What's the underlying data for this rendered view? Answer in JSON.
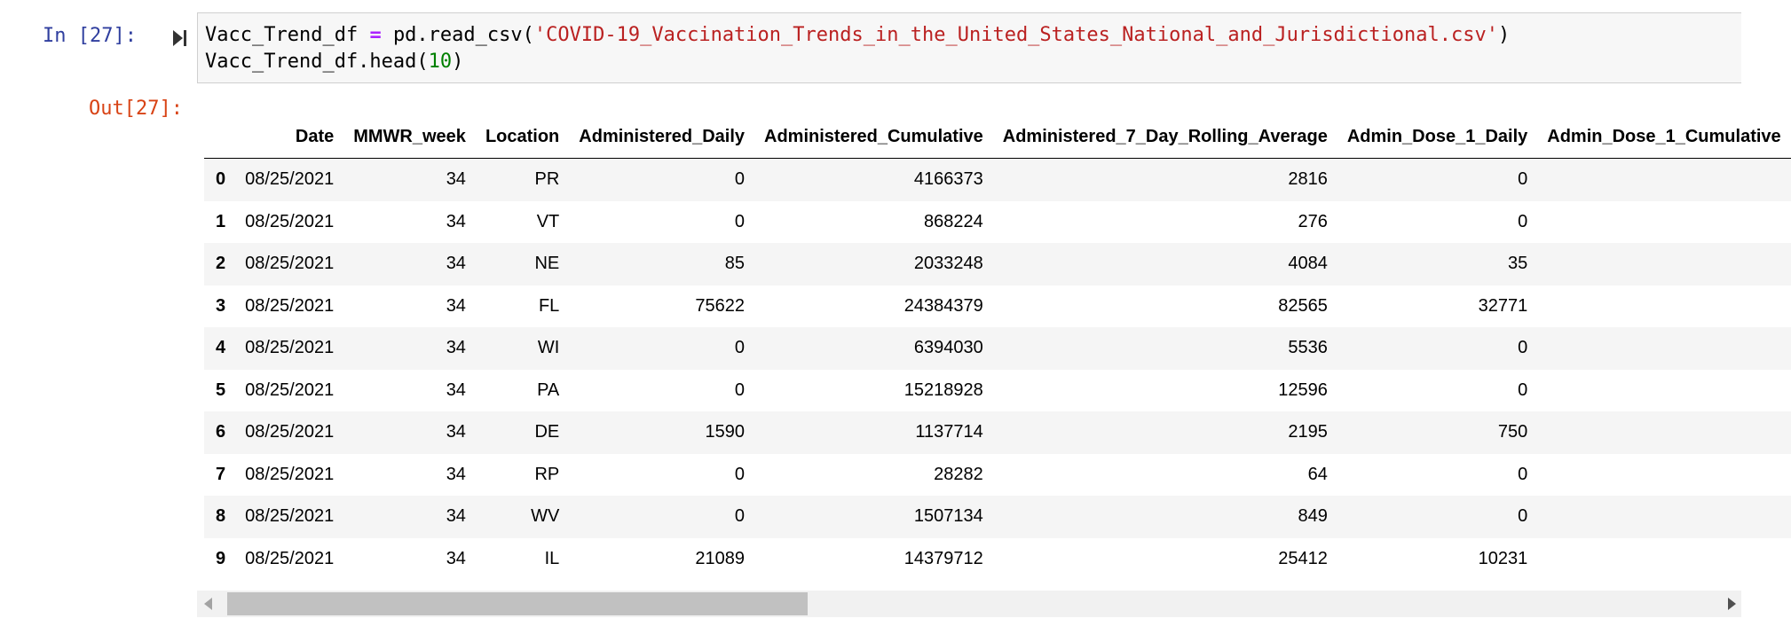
{
  "input_cell": {
    "prompt": "In [27]:",
    "line1": {
      "var": "Vacc_Trend_df",
      "op": "=",
      "call": "pd.read_csv(",
      "str": "'COVID-19_Vaccination_Trends_in_the_United_States_National_and_Jurisdictional.csv'",
      "close": ")"
    },
    "line2": {
      "call": "Vacc_Trend_df.head(",
      "num": "10",
      "close": ")"
    }
  },
  "output_cell": {
    "prompt": "Out[27]:"
  },
  "table": {
    "columns": [
      "Date",
      "MMWR_week",
      "Location",
      "Administered_Daily",
      "Administered_Cumulative",
      "Administered_7_Day_Rolling_Average",
      "Admin_Dose_1_Daily",
      "Admin_Dose_1_Cumulative"
    ],
    "rows": [
      {
        "index": "0",
        "cells": [
          "08/25/2021",
          "34",
          "PR",
          "0",
          "4166373",
          "2816",
          "0",
          ""
        ]
      },
      {
        "index": "1",
        "cells": [
          "08/25/2021",
          "34",
          "VT",
          "0",
          "868224",
          "276",
          "0",
          ""
        ]
      },
      {
        "index": "2",
        "cells": [
          "08/25/2021",
          "34",
          "NE",
          "85",
          "2033248",
          "4084",
          "35",
          ""
        ]
      },
      {
        "index": "3",
        "cells": [
          "08/25/2021",
          "34",
          "FL",
          "75622",
          "24384379",
          "82565",
          "32771",
          ""
        ]
      },
      {
        "index": "4",
        "cells": [
          "08/25/2021",
          "34",
          "WI",
          "0",
          "6394030",
          "5536",
          "0",
          ""
        ]
      },
      {
        "index": "5",
        "cells": [
          "08/25/2021",
          "34",
          "PA",
          "0",
          "15218928",
          "12596",
          "0",
          ""
        ]
      },
      {
        "index": "6",
        "cells": [
          "08/25/2021",
          "34",
          "DE",
          "1590",
          "1137714",
          "2195",
          "750",
          ""
        ]
      },
      {
        "index": "7",
        "cells": [
          "08/25/2021",
          "34",
          "RP",
          "0",
          "28282",
          "64",
          "0",
          ""
        ]
      },
      {
        "index": "8",
        "cells": [
          "08/25/2021",
          "34",
          "WV",
          "0",
          "1507134",
          "849",
          "0",
          ""
        ]
      },
      {
        "index": "9",
        "cells": [
          "08/25/2021",
          "34",
          "IL",
          "21089",
          "14379712",
          "25412",
          "10231",
          ""
        ]
      }
    ]
  },
  "scrollbar": {
    "position_fraction": 0.0,
    "visible_fraction": 0.39
  },
  "icons": {
    "run": "run-cell-icon",
    "scroll_left": "scroll-left-arrow-icon",
    "scroll_right": "scroll-right-arrow-icon"
  }
}
